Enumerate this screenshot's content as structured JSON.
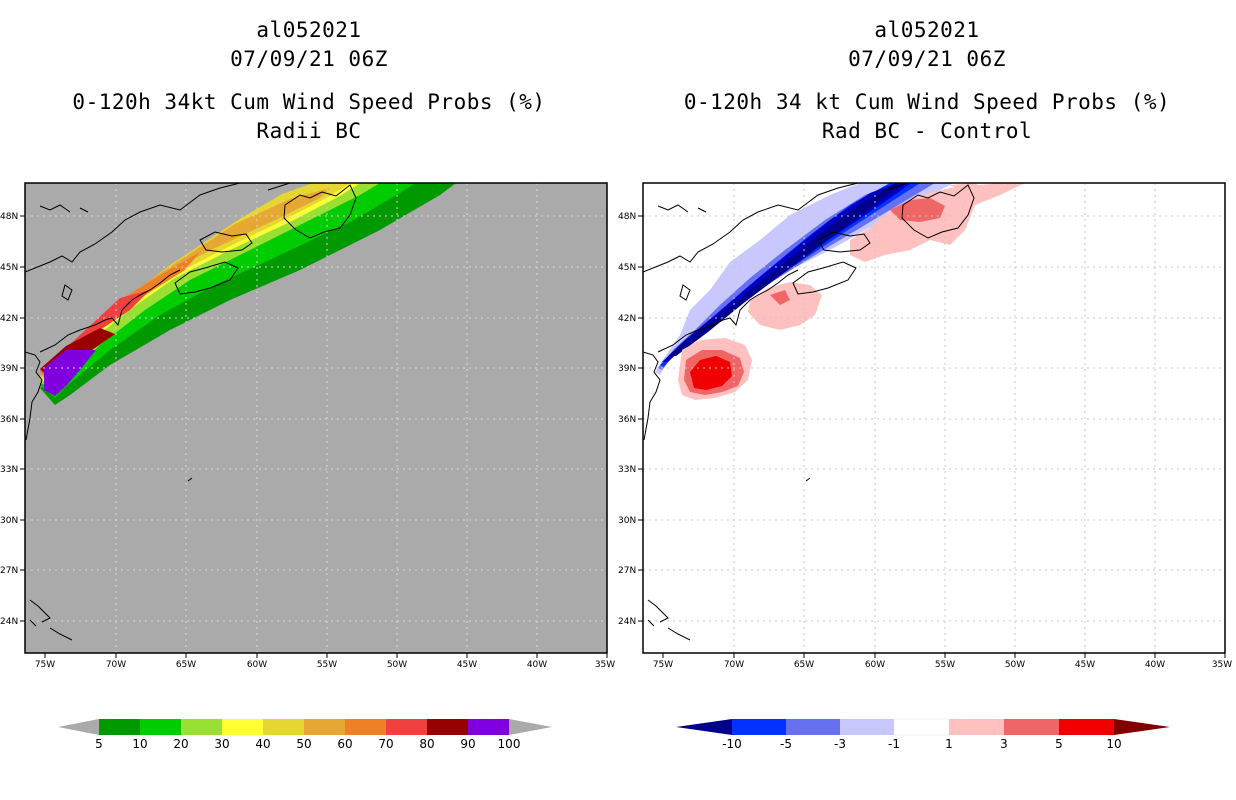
{
  "left_panel": {
    "storm_id": "al052021",
    "datetime": "07/09/21 06Z",
    "title_line1": "0-120h 34kt Cum Wind Speed Probs (%)",
    "title_line2": "Radii BC",
    "background_color": "#aaaaaa",
    "colorbar": {
      "labels": [
        "5",
        "10",
        "20",
        "30",
        "40",
        "50",
        "60",
        "70",
        "80",
        "90",
        "100"
      ],
      "colors": [
        "#009900",
        "#00cc00",
        "#99e033",
        "#ffff33",
        "#e6d633",
        "#e6a833",
        "#f08026",
        "#f04040",
        "#990000",
        "#8000e0"
      ],
      "extend_color": "#aaaaaa"
    }
  },
  "right_panel": {
    "storm_id": "al052021",
    "datetime": "07/09/21 06Z",
    "title_line1": "0-120h 34 kt Cum Wind Speed Probs (%)",
    "title_line2": "Rad BC - Control",
    "background_color": "#ffffff",
    "colorbar": {
      "labels": [
        "-10",
        "-5",
        "-3",
        "-1",
        "1",
        "3",
        "5",
        "10"
      ],
      "colors": [
        "#0000c8",
        "#0033ff",
        "#6670f0",
        "#c8c8ff",
        "#ffffff",
        "#ffc0c0",
        "#f06666",
        "#f00000",
        "#800000"
      ],
      "low_extend_color": "#00008c",
      "high_extend_color": "#800000"
    }
  },
  "lat_labels": [
    "48N",
    "45N",
    "42N",
    "39N",
    "36N",
    "33N",
    "30N",
    "27N",
    "24N"
  ],
  "lon_labels": [
    "75W",
    "70W",
    "65W",
    "60W",
    "55W",
    "50W",
    "45W",
    "40W",
    "35W"
  ]
}
